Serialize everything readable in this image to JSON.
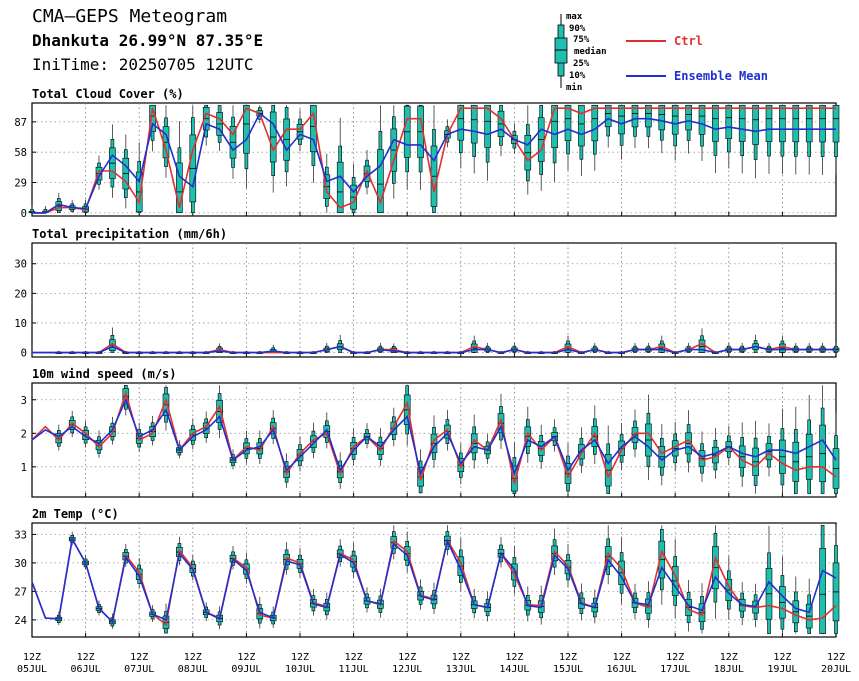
{
  "header": {
    "title": "CMA—GEPS Meteogram",
    "location": "Dhankuta 26.99°N 87.35°E",
    "init_time": "IniTime: 20250705 12UTC"
  },
  "legend": {
    "box_labels": [
      "max",
      "90%",
      "75%",
      "median",
      "25%",
      "10%",
      "min"
    ],
    "ctrl_label": "Ctrl",
    "mean_label": "Ensemble Mean",
    "ctrl_color": "#e03030",
    "mean_color": "#2030d0",
    "box_color": "#1fbfb0"
  },
  "x_ticks": [
    [
      "12Z",
      "05JUL"
    ],
    [
      "12Z",
      "06JUL"
    ],
    [
      "12Z",
      "07JUL"
    ],
    [
      "12Z",
      "08JUL"
    ],
    [
      "12Z",
      "09JUL"
    ],
    [
      "12Z",
      "10JUL"
    ],
    [
      "12Z",
      "11JUL"
    ],
    [
      "12Z",
      "12JUL"
    ],
    [
      "12Z",
      "13JUL"
    ],
    [
      "12Z",
      "14JUL"
    ],
    [
      "12Z",
      "15JUL"
    ],
    [
      "12Z",
      "16JUL"
    ],
    [
      "12Z",
      "17JUL"
    ],
    [
      "12Z",
      "18JUL"
    ],
    [
      "12Z",
      "19JUL"
    ],
    [
      "12Z",
      "20JUL"
    ]
  ],
  "chart_data": [
    {
      "type": "line",
      "title": "Total Cloud Cover (%)",
      "yticks": [
        0,
        29,
        58,
        87
      ],
      "ylim": [
        -3,
        105
      ],
      "x_hours": [
        0,
        6,
        12,
        18,
        24,
        30,
        36,
        42,
        48,
        54,
        60,
        66,
        72,
        78,
        84,
        90,
        96,
        102,
        108,
        114,
        120,
        126,
        132,
        138,
        144,
        150,
        156,
        162,
        168,
        174,
        180,
        186,
        192,
        198,
        204,
        210,
        216,
        222,
        228,
        234,
        240,
        246,
        252,
        258,
        264,
        270,
        276,
        282,
        288,
        294,
        300,
        306,
        312,
        318,
        324,
        330,
        336,
        342,
        348,
        354,
        360
      ],
      "series": [
        {
          "name": "Ctrl",
          "values": [
            0,
            0,
            5,
            5,
            3,
            40,
            40,
            30,
            10,
            100,
            60,
            5,
            60,
            95,
            90,
            75,
            100,
            95,
            60,
            80,
            80,
            95,
            20,
            5,
            10,
            40,
            10,
            50,
            90,
            90,
            20,
            75,
            100,
            100,
            100,
            90,
            70,
            50,
            60,
            100,
            100,
            95,
            100,
            100,
            100,
            100,
            100,
            100,
            100,
            100,
            100,
            100,
            100,
            100,
            100,
            100,
            100,
            100,
            100,
            100,
            100
          ]
        },
        {
          "name": "Ensemble Mean",
          "values": [
            0,
            0,
            8,
            5,
            4,
            35,
            55,
            45,
            30,
            85,
            75,
            35,
            25,
            85,
            80,
            60,
            70,
            95,
            85,
            60,
            75,
            70,
            30,
            35,
            20,
            35,
            45,
            70,
            65,
            65,
            50,
            75,
            80,
            78,
            75,
            80,
            70,
            65,
            80,
            75,
            80,
            75,
            80,
            90,
            85,
            90,
            90,
            88,
            85,
            88,
            85,
            80,
            82,
            80,
            78,
            80,
            80,
            80,
            80,
            80,
            80
          ]
        }
      ]
    },
    {
      "type": "line",
      "title": "Total precipitation (mm/6h)",
      "yticks": [
        0,
        10,
        20,
        30
      ],
      "ylim": [
        -1.5,
        37
      ],
      "x_hours": [
        0,
        6,
        12,
        18,
        24,
        30,
        36,
        42,
        48,
        54,
        60,
        66,
        72,
        78,
        84,
        90,
        96,
        102,
        108,
        114,
        120,
        126,
        132,
        138,
        144,
        150,
        156,
        162,
        168,
        174,
        180,
        186,
        192,
        198,
        204,
        210,
        216,
        222,
        228,
        234,
        240,
        246,
        252,
        258,
        264,
        270,
        276,
        282,
        288,
        294,
        300,
        306,
        312,
        318,
        324,
        330,
        336,
        342,
        348,
        354,
        360
      ],
      "series": [
        {
          "name": "Ctrl",
          "values": [
            0,
            0,
            0,
            0,
            0,
            0,
            3,
            0,
            0,
            0,
            0,
            0,
            0,
            0,
            1,
            0,
            0,
            0,
            0,
            0,
            0,
            0,
            1,
            2,
            0,
            0,
            1,
            1,
            0,
            0,
            0,
            0,
            0,
            2,
            1,
            0,
            1,
            0,
            0,
            0,
            2,
            0,
            1,
            0,
            0,
            1,
            1,
            2,
            0,
            1,
            3,
            0,
            1,
            1,
            2,
            1,
            2,
            1,
            1,
            1,
            1
          ]
        },
        {
          "name": "Ensemble Mean",
          "values": [
            0,
            0,
            0,
            0,
            0,
            0,
            2,
            0,
            0,
            0,
            0,
            0,
            0,
            0,
            0.5,
            0,
            0,
            0,
            0.5,
            0,
            0,
            0,
            1,
            2,
            0,
            0,
            1,
            0.5,
            0,
            0,
            0,
            0,
            0,
            1,
            1,
            0,
            1,
            0,
            0,
            0,
            1,
            0,
            1,
            0,
            0,
            1,
            1,
            1,
            0,
            1,
            1,
            0,
            1,
            1,
            2,
            1,
            1,
            1,
            1,
            1,
            1
          ]
        }
      ]
    },
    {
      "type": "line",
      "title": "10m wind speed (m/s)",
      "yticks": [
        1,
        2,
        3
      ],
      "ylim": [
        0.1,
        3.5
      ],
      "x_hours": [
        0,
        6,
        12,
        18,
        24,
        30,
        36,
        42,
        48,
        54,
        60,
        66,
        72,
        78,
        84,
        90,
        96,
        102,
        108,
        114,
        120,
        126,
        132,
        138,
        144,
        150,
        156,
        162,
        168,
        174,
        180,
        186,
        192,
        198,
        204,
        210,
        216,
        222,
        228,
        234,
        240,
        246,
        252,
        258,
        264,
        270,
        276,
        282,
        288,
        294,
        300,
        306,
        312,
        318,
        324,
        330,
        336,
        342,
        348,
        354,
        360
      ],
      "series": [
        {
          "name": "Ctrl",
          "values": [
            1.8,
            2.2,
            1.8,
            2.3,
            2.0,
            1.6,
            2.0,
            3.2,
            1.8,
            2.0,
            3.0,
            1.5,
            2.0,
            2.2,
            2.8,
            1.2,
            1.6,
            1.5,
            2.2,
            0.8,
            1.4,
            1.8,
            2.0,
            0.8,
            1.6,
            1.9,
            1.5,
            2.2,
            2.9,
            0.6,
            1.8,
            2.1,
            1.0,
            1.8,
            1.5,
            2.4,
            0.5,
            2.0,
            1.5,
            1.9,
            0.7,
            1.4,
            2.0,
            0.7,
            1.5,
            2.0,
            2.0,
            1.4,
            1.6,
            1.8,
            1.2,
            1.3,
            1.6,
            1.2,
            1.0,
            1.4,
            1.1,
            0.9,
            1.0,
            1.0,
            0.7
          ]
        },
        {
          "name": "Ensemble Mean",
          "values": [
            1.8,
            2.1,
            1.9,
            2.2,
            1.9,
            1.7,
            2.1,
            3.0,
            1.9,
            2.1,
            2.7,
            1.5,
            1.9,
            2.1,
            2.5,
            1.2,
            1.5,
            1.6,
            2.1,
            0.9,
            1.3,
            1.7,
            2.1,
            0.9,
            1.5,
            1.9,
            1.6,
            2.1,
            2.5,
            0.8,
            1.6,
            2.0,
            1.1,
            1.6,
            1.5,
            2.2,
            0.8,
            1.8,
            1.6,
            1.9,
            0.9,
            1.5,
            1.8,
            1.1,
            1.6,
            1.9,
            1.6,
            1.2,
            1.5,
            1.6,
            1.3,
            1.4,
            1.6,
            1.4,
            1.3,
            1.5,
            1.5,
            1.4,
            1.6,
            1.8,
            1.2
          ]
        }
      ]
    },
    {
      "type": "line",
      "title": "2m Temp (°C)",
      "yticks": [
        24,
        27,
        30,
        33
      ],
      "ylim": [
        22.2,
        34.2
      ],
      "x_hours": [
        0,
        6,
        12,
        18,
        24,
        30,
        36,
        42,
        48,
        54,
        60,
        66,
        72,
        78,
        84,
        90,
        96,
        102,
        108,
        114,
        120,
        126,
        132,
        138,
        144,
        150,
        156,
        162,
        168,
        174,
        180,
        186,
        192,
        198,
        204,
        210,
        216,
        222,
        228,
        234,
        240,
        246,
        252,
        258,
        264,
        270,
        276,
        282,
        288,
        294,
        300,
        306,
        312,
        318,
        324,
        330,
        336,
        342,
        348,
        354,
        360
      ],
      "series": [
        {
          "name": "Ctrl",
          "values": [
            28,
            24.2,
            24.1,
            32.5,
            30,
            25.2,
            23.8,
            30.8,
            29,
            24.6,
            23.5,
            31.3,
            29.5,
            24.8,
            24.2,
            30.5,
            29.5,
            24.5,
            24.2,
            30.5,
            30.0,
            25.8,
            25.4,
            31.0,
            30.3,
            26.0,
            25.6,
            32.3,
            31.2,
            26.6,
            26.2,
            32.4,
            30.0,
            25.6,
            25.3,
            31.0,
            28.8,
            25.6,
            25.5,
            31.2,
            29.7,
            25.8,
            25.3,
            31.0,
            29.4,
            25.8,
            25.3,
            31.2,
            28.7,
            25.1,
            24.5,
            30.5,
            27.5,
            25.5,
            25.3,
            25.5,
            25.2,
            24.5,
            24.0,
            24.2,
            25.5
          ]
        },
        {
          "name": "Ensemble Mean",
          "values": [
            28,
            24.2,
            24.1,
            32.5,
            30,
            25.2,
            23.8,
            30.6,
            28.6,
            24.6,
            24.0,
            31.0,
            29.3,
            24.8,
            24.1,
            30.4,
            29.2,
            24.8,
            24.2,
            30.2,
            29.8,
            25.7,
            25.3,
            30.9,
            30.0,
            26.0,
            25.7,
            32.0,
            30.8,
            26.5,
            26.1,
            32.3,
            29.3,
            25.6,
            25.3,
            31.0,
            29.3,
            25.5,
            25.3,
            30.8,
            29.4,
            25.7,
            25.3,
            30.3,
            28.5,
            25.8,
            25.6,
            29.5,
            27.5,
            25.5,
            25.0,
            28.5,
            26.8,
            25.6,
            25.4,
            28.0,
            26.5,
            25.2,
            24.8,
            29.2,
            28.4
          ]
        }
      ]
    }
  ]
}
